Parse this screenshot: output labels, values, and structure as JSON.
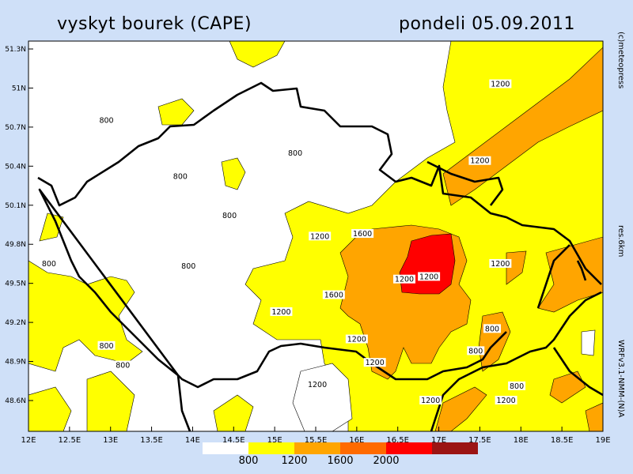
{
  "header": {
    "title": "vyskyt bourek (CAPE)",
    "date": "pondeli 05.09.2011"
  },
  "side_labels": {
    "credit": "(c)meteopress",
    "resolution": "res.6km",
    "model": "WRFv3.1-NMM-(N)A"
  },
  "map": {
    "lon_ticks": [
      "12E",
      "12.5E",
      "13E",
      "13.5E",
      "14E",
      "14.5E",
      "15E",
      "15.5E",
      "16E",
      "16.5E",
      "17E",
      "17.5E",
      "18E",
      "18.5E",
      "19E"
    ],
    "lat_ticks": [
      "51.3N",
      "51N",
      "50.7N",
      "50.4N",
      "50.1N",
      "49.8N",
      "49.5N",
      "49.2N",
      "48.9N",
      "48.6N"
    ],
    "contour_labels": [
      {
        "text": "800",
        "lon": 12.95,
        "lat": 50.75
      },
      {
        "text": "800",
        "lon": 13.85,
        "lat": 50.32
      },
      {
        "text": "800",
        "lon": 12.25,
        "lat": 49.65
      },
      {
        "text": "800",
        "lon": 12.95,
        "lat": 49.02
      },
      {
        "text": "800",
        "lon": 13.95,
        "lat": 49.63
      },
      {
        "text": "800",
        "lon": 14.45,
        "lat": 50.02
      },
      {
        "text": "800",
        "lon": 15.25,
        "lat": 50.5
      },
      {
        "text": "800",
        "lon": 13.15,
        "lat": 48.87
      },
      {
        "text": "800",
        "lon": 17.65,
        "lat": 49.15
      },
      {
        "text": "800",
        "lon": 17.45,
        "lat": 48.98
      },
      {
        "text": "800",
        "lon": 17.95,
        "lat": 48.71
      },
      {
        "text": "1200",
        "lon": 17.75,
        "lat": 51.03
      },
      {
        "text": "1200",
        "lon": 17.5,
        "lat": 50.44
      },
      {
        "text": "1200",
        "lon": 15.55,
        "lat": 49.86
      },
      {
        "text": "1200",
        "lon": 15.08,
        "lat": 49.28
      },
      {
        "text": "1200",
        "lon": 16.58,
        "lat": 49.53
      },
      {
        "text": "1200",
        "lon": 16.88,
        "lat": 49.55
      },
      {
        "text": "1200",
        "lon": 17.75,
        "lat": 49.65
      },
      {
        "text": "1200",
        "lon": 16.0,
        "lat": 49.07
      },
      {
        "text": "1200",
        "lon": 16.22,
        "lat": 48.89
      },
      {
        "text": "1200",
        "lon": 15.52,
        "lat": 48.72
      },
      {
        "text": "1200",
        "lon": 16.9,
        "lat": 48.6
      },
      {
        "text": "1200",
        "lon": 17.82,
        "lat": 48.6
      },
      {
        "text": "1600",
        "lon": 16.07,
        "lat": 49.88
      },
      {
        "text": "1600",
        "lon": 15.72,
        "lat": 49.41
      }
    ]
  },
  "legend": {
    "labels": [
      "800",
      "1200",
      "1600",
      "2000"
    ],
    "colors": [
      "#ffffff",
      "#ffff00",
      "#ffa500",
      "#ff6a00",
      "#ff0000",
      "#9b1414"
    ]
  }
}
